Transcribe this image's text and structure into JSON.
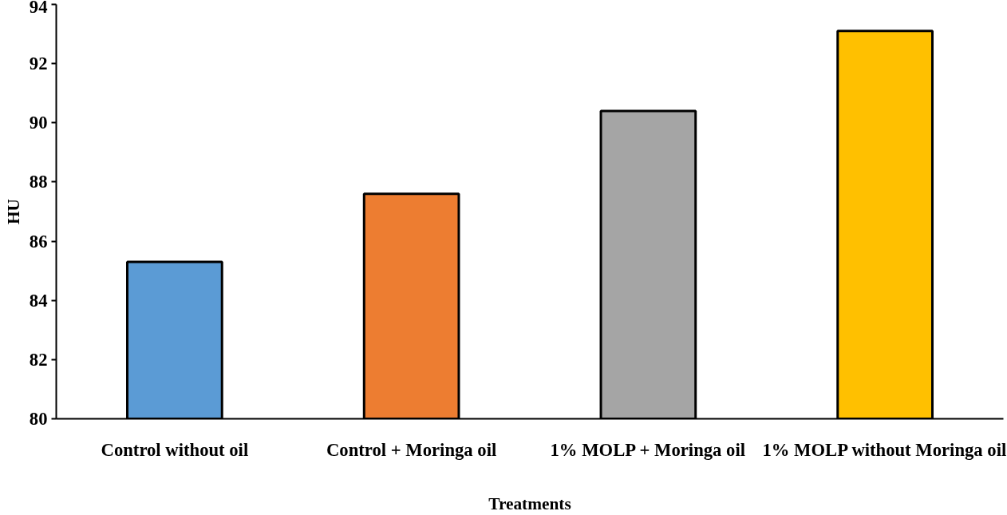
{
  "chart_data": {
    "type": "bar",
    "xlabel": "Treatments",
    "ylabel": "HU",
    "categories": [
      "Control without oil",
      "Control + Moringa oil",
      "1% MOLP + Moringa oil",
      "1% MOLP without Moringa oil"
    ],
    "values": [
      85.3,
      87.6,
      90.4,
      93.1
    ],
    "colors": [
      "#5b9bd5",
      "#ed7d31",
      "#a5a5a5",
      "#ffc000"
    ],
    "ylim": [
      80,
      94
    ],
    "yticks": [
      80,
      82,
      84,
      86,
      88,
      90,
      92,
      94
    ],
    "grid": false
  }
}
